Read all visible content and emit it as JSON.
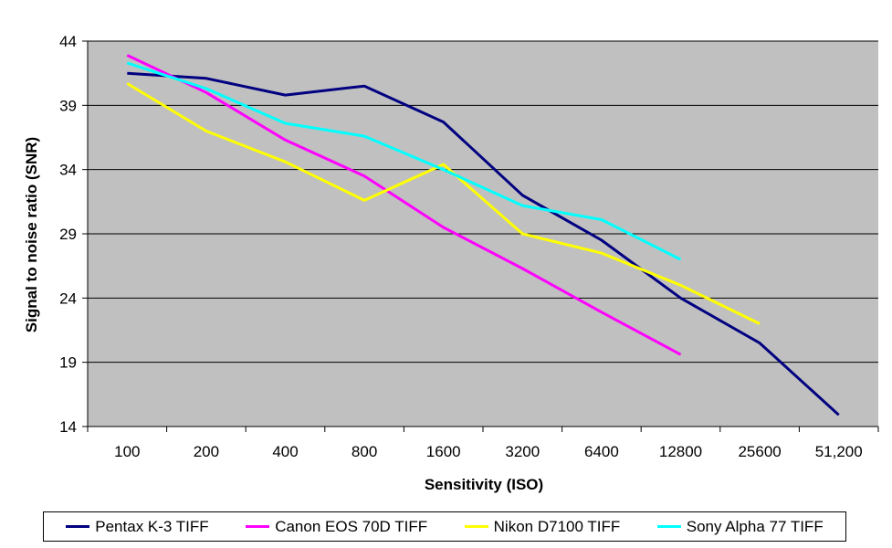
{
  "chart_data": {
    "type": "line",
    "title": "",
    "xlabel": "Sensitivity (ISO)",
    "ylabel": "Signal to noise ratio (SNR)",
    "categories": [
      "100",
      "200",
      "400",
      "800",
      "1600",
      "3200",
      "6400",
      "12800",
      "25600",
      "51,200"
    ],
    "ylim": [
      14,
      44
    ],
    "yticks": [
      14,
      19,
      24,
      29,
      34,
      39,
      44
    ],
    "grid": "horizontal",
    "background": "#C0C0C0",
    "legend_position": "bottom",
    "series": [
      {
        "name": "Pentax K-3 TIFF",
        "color": "#000080",
        "values": [
          41.5,
          41.1,
          39.8,
          40.5,
          37.7,
          32.0,
          28.5,
          24.0,
          20.5,
          14.9
        ]
      },
      {
        "name": "Canon EOS 70D TIFF",
        "color": "#FF00FF",
        "values": [
          42.9,
          40.0,
          36.3,
          33.5,
          29.5,
          26.3,
          22.9,
          19.6,
          null,
          null
        ]
      },
      {
        "name": "Nikon D7100 TIFF",
        "color": "#FFFF00",
        "values": [
          40.7,
          37.0,
          34.6,
          31.6,
          34.4,
          29.0,
          27.5,
          25.0,
          22.0,
          null
        ]
      },
      {
        "name": "Sony Alpha 77 TIFF",
        "color": "#00FFFF",
        "values": [
          42.3,
          40.3,
          37.6,
          36.6,
          34.0,
          31.2,
          30.1,
          27.0,
          null,
          null
        ]
      }
    ]
  }
}
